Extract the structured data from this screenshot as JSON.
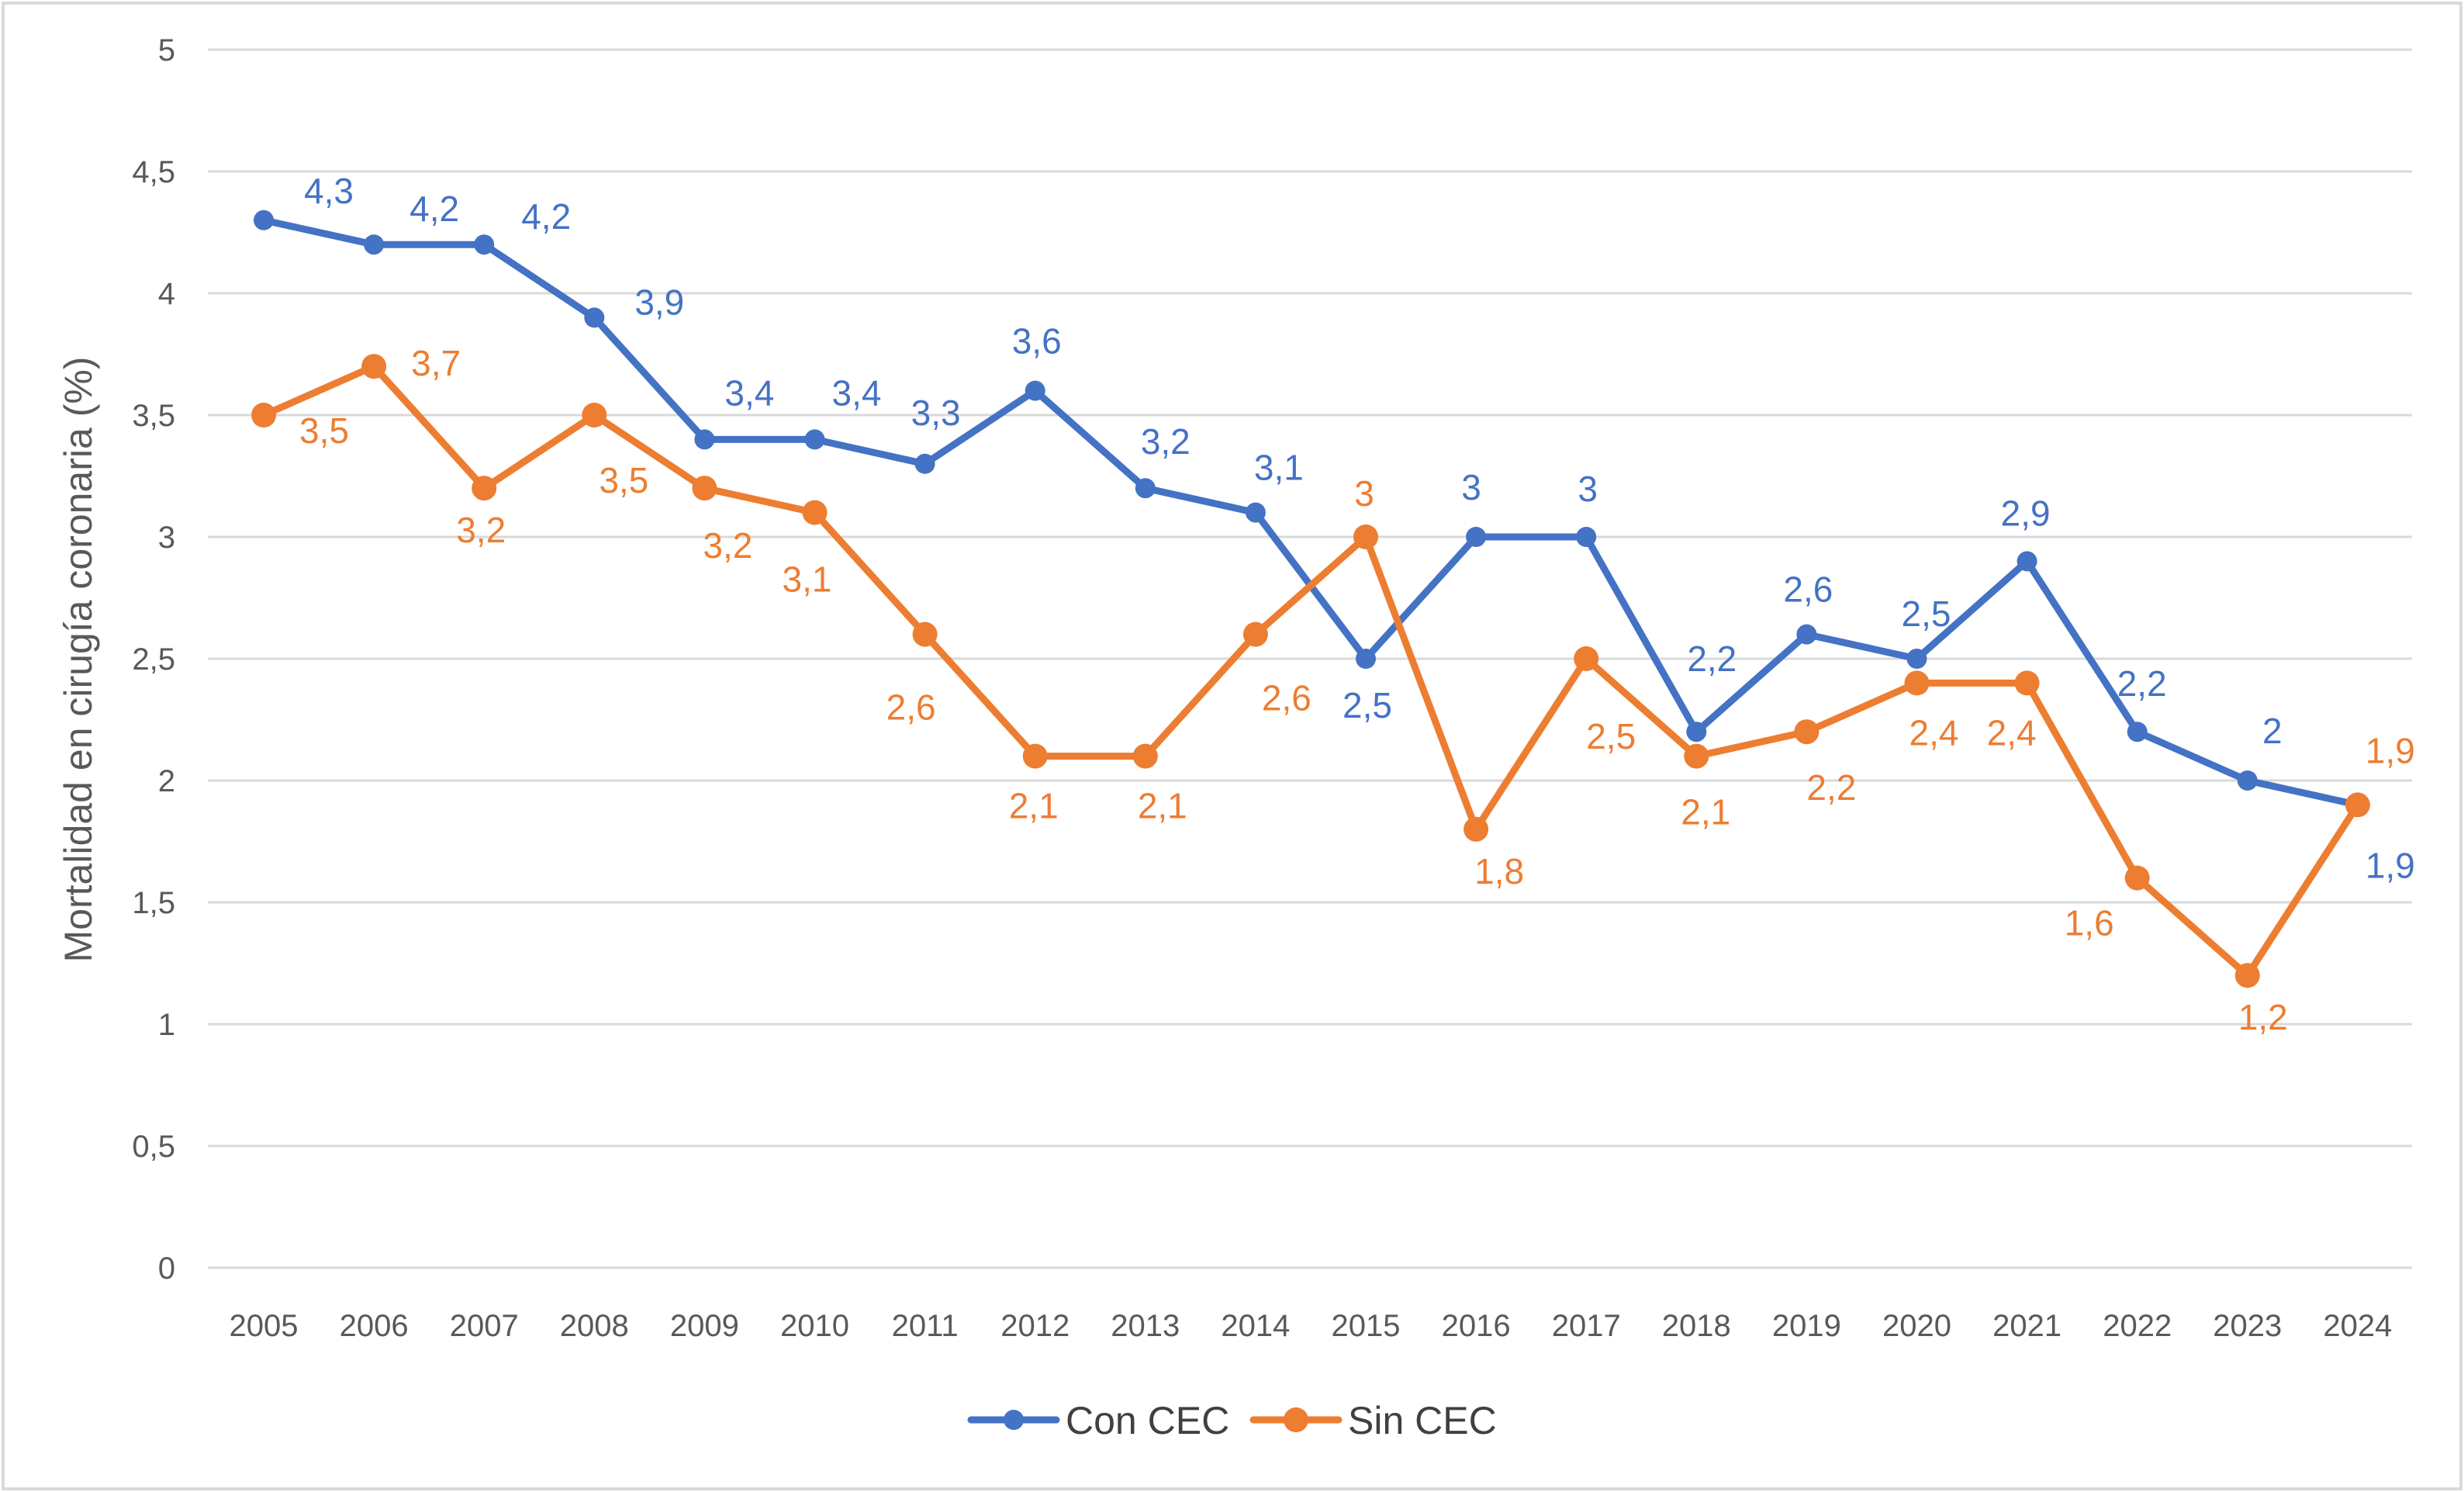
{
  "chart_data": {
    "type": "line",
    "title": "",
    "xlabel": "",
    "ylabel": "Mortalidad en cirugía coronaria (%)",
    "categories": [
      "2005",
      "2006",
      "2007",
      "2008",
      "2009",
      "2010",
      "2011",
      "2012",
      "2013",
      "2014",
      "2015",
      "2016",
      "2017",
      "2018",
      "2019",
      "2020",
      "2021",
      "2022",
      "2023",
      "2024"
    ],
    "ylim": [
      0,
      5
    ],
    "yticks": [
      "0",
      "0,5",
      "1",
      "1,5",
      "2",
      "2,5",
      "3",
      "3,5",
      "4",
      "4,5",
      "5"
    ],
    "grid": true,
    "legend_position": "bottom",
    "series": [
      {
        "name": "Con CEC",
        "color": "#4472C4",
        "values": [
          4.3,
          4.2,
          4.2,
          3.9,
          3.4,
          3.4,
          3.3,
          3.6,
          3.2,
          3.1,
          2.5,
          3,
          3,
          2.2,
          2.6,
          2.5,
          2.9,
          2.2,
          2,
          1.9
        ],
        "labels": [
          "4,3",
          "4,2",
          "4,2",
          "3,9",
          "3,4",
          "3,4",
          "3,3",
          "3,6",
          "3,2",
          "3,1",
          "2,5",
          "3",
          "3",
          "2,2",
          "2,6",
          "2,5",
          "2,9",
          "2,2",
          "2",
          "1,9"
        ]
      },
      {
        "name": "Sin CEC",
        "color": "#ED7D31",
        "values": [
          3.5,
          3.7,
          3.2,
          3.5,
          3.2,
          3.1,
          2.6,
          2.1,
          2.1,
          2.6,
          3,
          1.8,
          2.5,
          2.1,
          2.2,
          2.4,
          2.4,
          1.6,
          1.2,
          1.9
        ],
        "labels": [
          "3,5",
          "3,7",
          "3,2",
          "3,5",
          "3,2",
          "3,1",
          "2,6",
          "2,1",
          "2,1",
          "2,6",
          "3",
          "1,8",
          "2,5",
          "2,1",
          "2,2",
          "2,4",
          "2,4",
          "1,6",
          "1,2",
          "1,9"
        ]
      }
    ]
  }
}
